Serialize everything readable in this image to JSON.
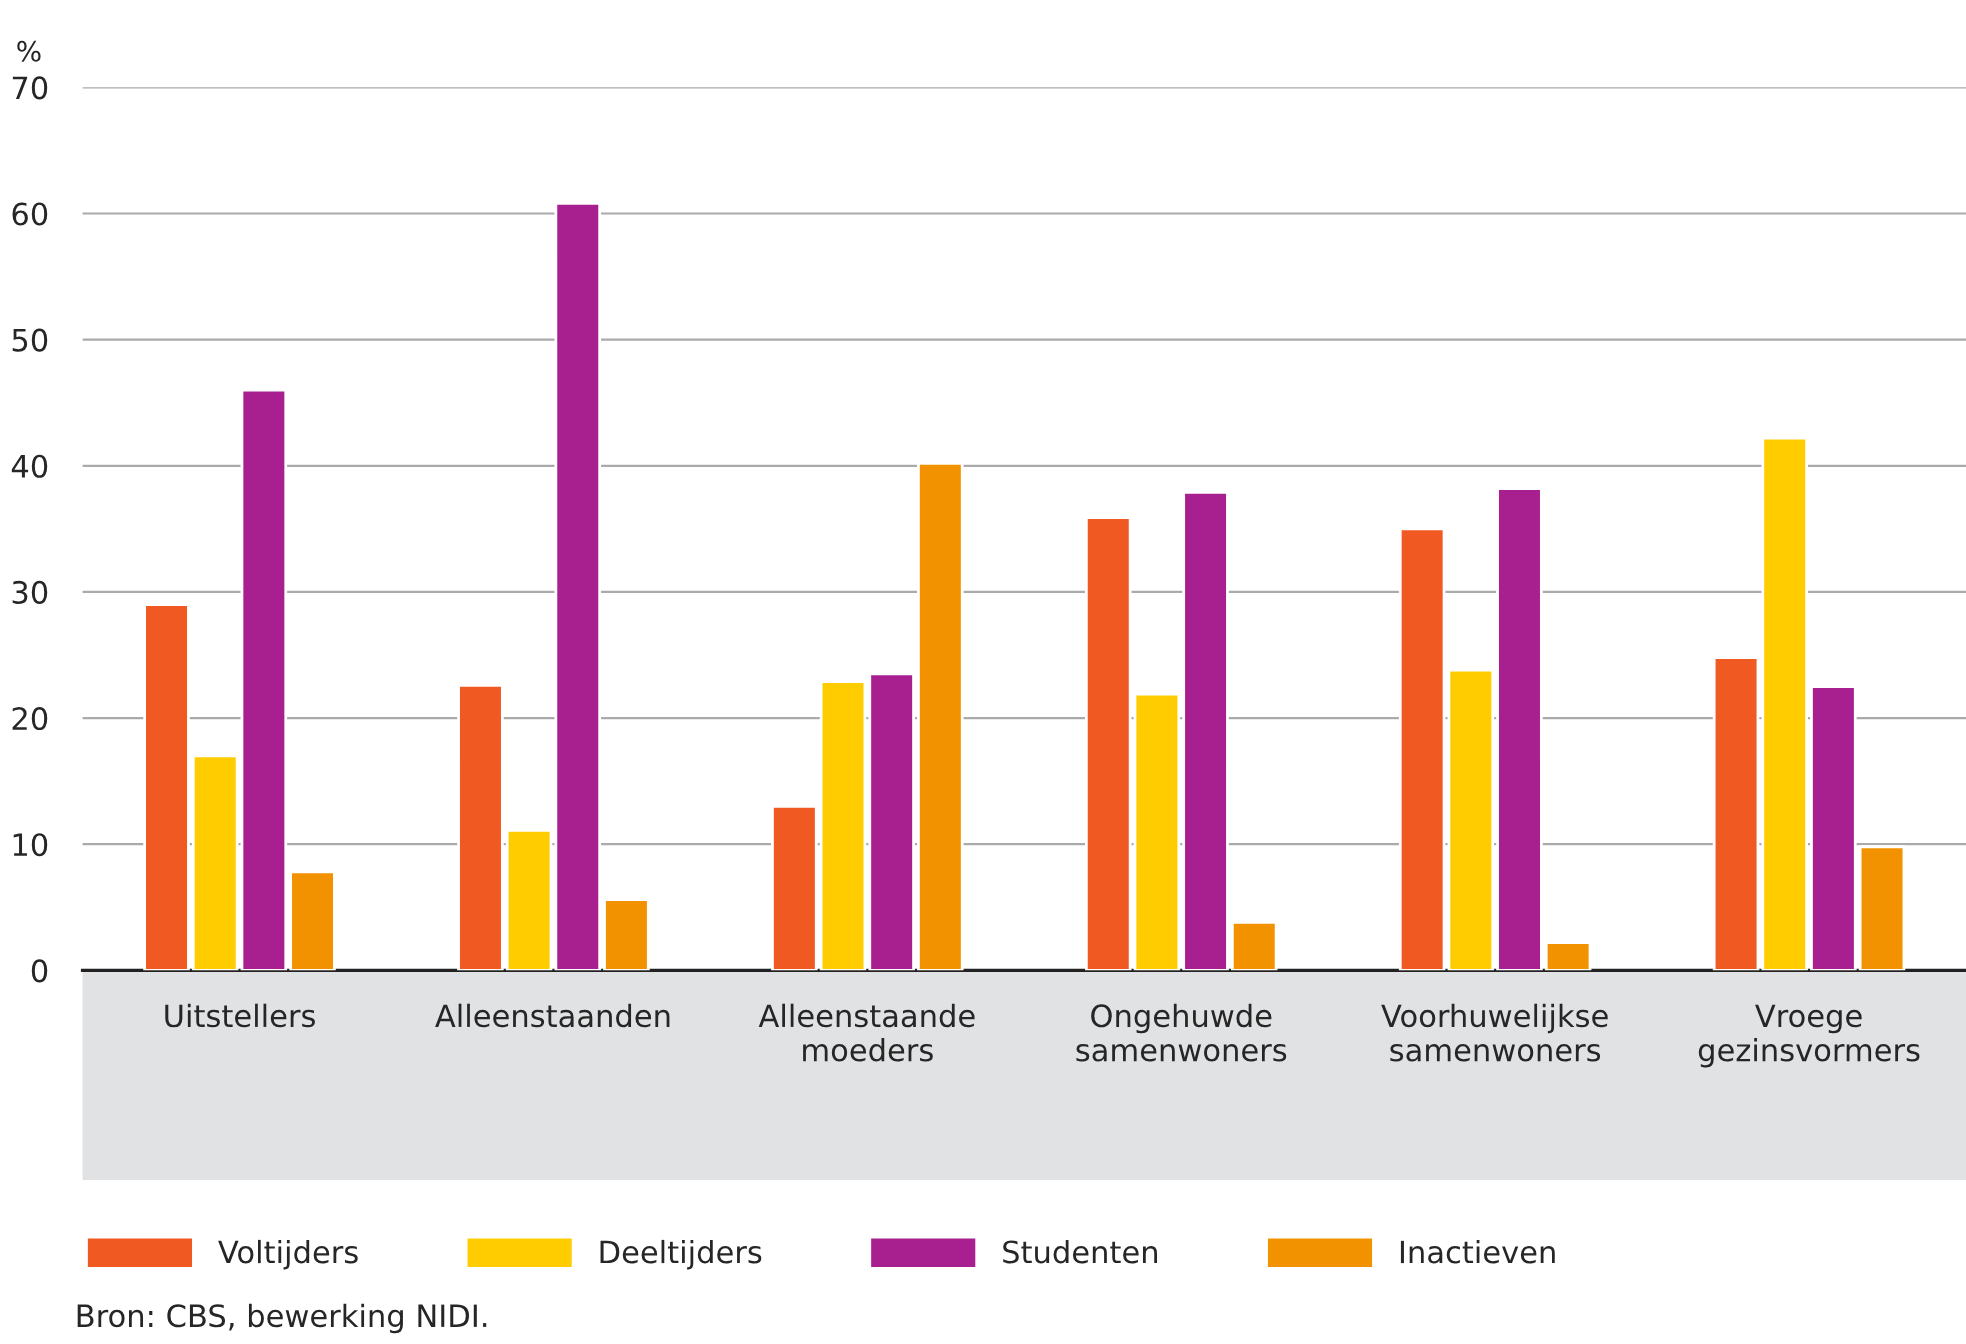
{
  "chart_data": {
    "type": "bar",
    "ylabel": "%",
    "categories": [
      "Uitstellers",
      "Alleenstaanden",
      "Alleenstaande moeders",
      "Ongehuwde samenwoners",
      "Voorhuwelijkse samenwoners",
      "Vroege gezinsvormers"
    ],
    "series": [
      {
        "name": "Voltijders",
        "color": "#f05a22",
        "values": [
          29,
          22.6,
          13,
          35.9,
          35,
          24.8
        ]
      },
      {
        "name": "Deeltijders",
        "color": "#ffcc00",
        "values": [
          17,
          11.1,
          22.9,
          21.9,
          23.8,
          42.2
        ]
      },
      {
        "name": "Studenten",
        "color": "#a82090",
        "values": [
          46,
          60.8,
          23.5,
          37.9,
          38.2,
          22.5
        ]
      },
      {
        "name": "Inactieven",
        "color": "#f39200",
        "values": [
          7.8,
          5.6,
          40.2,
          3.8,
          2.2,
          9.8
        ]
      }
    ],
    "ylim": [
      0,
      70
    ],
    "yticks": [
      0,
      10,
      20,
      30,
      40,
      50,
      60,
      70
    ],
    "grid": "y",
    "legend": "bottom",
    "annotations": [
      "Bron: CBS, bewerking NIDI."
    ]
  }
}
